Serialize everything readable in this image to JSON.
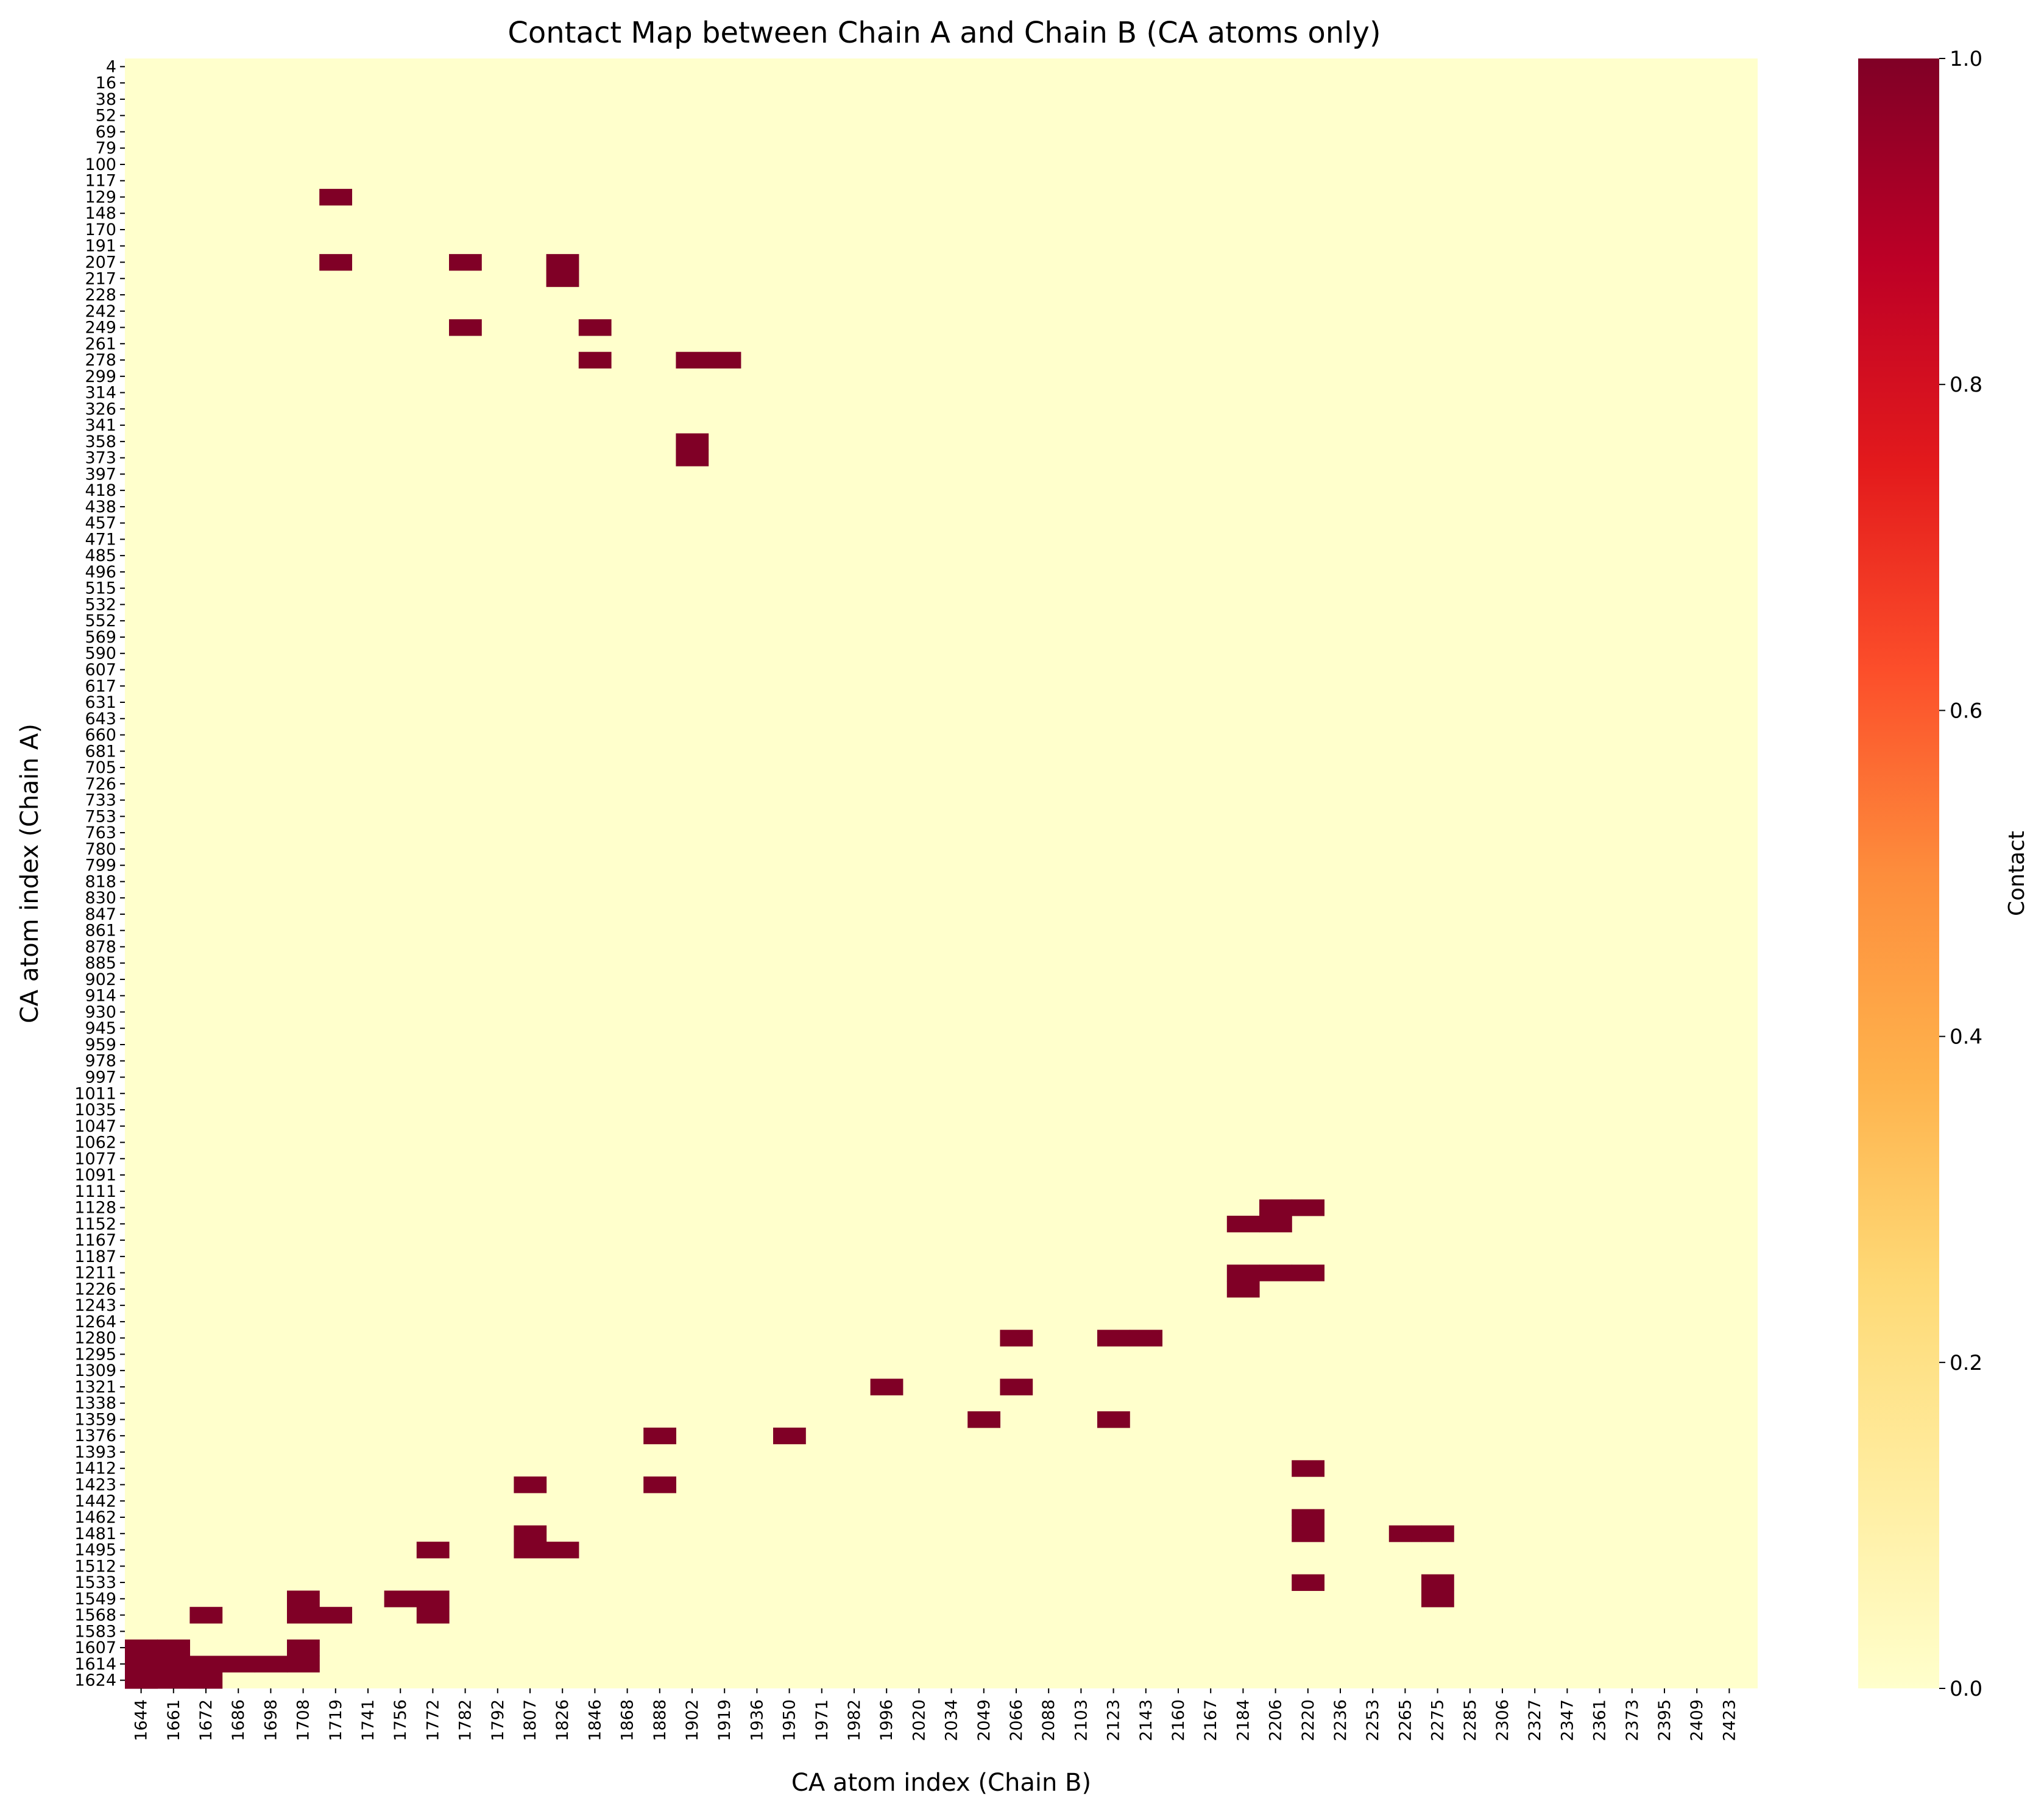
{
  "chart_data": {
    "type": "heatmap",
    "title": "Contact Map between Chain A and Chain B (CA atoms only)",
    "xlabel": "CA atom index (Chain B)",
    "ylabel": "CA atom index (Chain A)",
    "colorbar": {
      "label": "Contact",
      "range": [
        0,
        1
      ],
      "ticks": [
        "0.0",
        "0.2",
        "0.4",
        "0.6",
        "0.8",
        "1.0"
      ],
      "colormap": "YlOrRd",
      "colors": [
        "#ffffcc",
        "#ffeda0",
        "#fed976",
        "#feb24c",
        "#fd8d3c",
        "#fc4e2a",
        "#e31a1c",
        "#bd0026",
        "#800026"
      ]
    },
    "x_tick_labels": [
      "1644",
      "1661",
      "1672",
      "1686",
      "1698",
      "1708",
      "1719",
      "1741",
      "1756",
      "1772",
      "1782",
      "1792",
      "1807",
      "1826",
      "1846",
      "1868",
      "1888",
      "1902",
      "1919",
      "1936",
      "1950",
      "1971",
      "1982",
      "1996",
      "2020",
      "2034",
      "2049",
      "2066",
      "2088",
      "2103",
      "2123",
      "2143",
      "2160",
      "2167",
      "2184",
      "2206",
      "2220",
      "2236",
      "2253",
      "2265",
      "2275",
      "2285",
      "2306",
      "2327",
      "2347",
      "2361",
      "2373",
      "2395",
      "2409",
      "2423"
    ],
    "y_tick_labels": [
      "4",
      "16",
      "38",
      "52",
      "69",
      "79",
      "100",
      "117",
      "129",
      "148",
      "170",
      "191",
      "207",
      "217",
      "228",
      "242",
      "249",
      "261",
      "278",
      "299",
      "314",
      "326",
      "341",
      "358",
      "373",
      "397",
      "418",
      "438",
      "457",
      "471",
      "485",
      "496",
      "515",
      "532",
      "552",
      "569",
      "590",
      "607",
      "617",
      "631",
      "643",
      "660",
      "681",
      "705",
      "726",
      "733",
      "753",
      "763",
      "780",
      "799",
      "818",
      "830",
      "847",
      "861",
      "878",
      "885",
      "902",
      "914",
      "930",
      "945",
      "959",
      "978",
      "997",
      "1011",
      "1035",
      "1047",
      "1062",
      "1077",
      "1091",
      "1111",
      "1128",
      "1152",
      "1167",
      "1187",
      "1211",
      "1226",
      "1243",
      "1264",
      "1280",
      "1295",
      "1309",
      "1321",
      "1338",
      "1359",
      "1376",
      "1393",
      "1412",
      "1423",
      "1442",
      "1462",
      "1481",
      "1495",
      "1512",
      "1533",
      "1549",
      "1568",
      "1583",
      "1607",
      "1614",
      "1624"
    ],
    "contacts": [
      [
        "1719",
        "129"
      ],
      [
        "1719",
        "207"
      ],
      [
        "1782",
        "207"
      ],
      [
        "1826",
        "207"
      ],
      [
        "1826",
        "217"
      ],
      [
        "1782",
        "249"
      ],
      [
        "1846",
        "249"
      ],
      [
        "1846",
        "278"
      ],
      [
        "1902",
        "278"
      ],
      [
        "1919",
        "278"
      ],
      [
        "1902",
        "358"
      ],
      [
        "1902",
        "373"
      ],
      [
        "2206",
        "1128"
      ],
      [
        "2220",
        "1128"
      ],
      [
        "2184",
        "1152"
      ],
      [
        "2206",
        "1152"
      ],
      [
        "2184",
        "1211"
      ],
      [
        "2206",
        "1211"
      ],
      [
        "2220",
        "1211"
      ],
      [
        "2184",
        "1226"
      ],
      [
        "2066",
        "1280"
      ],
      [
        "2123",
        "1280"
      ],
      [
        "2143",
        "1280"
      ],
      [
        "1996",
        "1321"
      ],
      [
        "2066",
        "1321"
      ],
      [
        "2049",
        "1359"
      ],
      [
        "2123",
        "1359"
      ],
      [
        "1888",
        "1376"
      ],
      [
        "1950",
        "1376"
      ],
      [
        "2220",
        "1412"
      ],
      [
        "1807",
        "1423"
      ],
      [
        "1888",
        "1423"
      ],
      [
        "2220",
        "1462"
      ],
      [
        "2220",
        "1481"
      ],
      [
        "2265",
        "1481"
      ],
      [
        "2275",
        "1481"
      ],
      [
        "1807",
        "1481"
      ],
      [
        "1807",
        "1495"
      ],
      [
        "1826",
        "1495"
      ],
      [
        "1772",
        "1495"
      ],
      [
        "2220",
        "1533"
      ],
      [
        "2275",
        "1533"
      ],
      [
        "2275",
        "1549"
      ],
      [
        "1708",
        "1549"
      ],
      [
        "1756",
        "1549"
      ],
      [
        "1772",
        "1549"
      ],
      [
        "1672",
        "1568"
      ],
      [
        "1708",
        "1568"
      ],
      [
        "1719",
        "1568"
      ],
      [
        "1772",
        "1568"
      ],
      [
        "1644",
        "1607"
      ],
      [
        "1661",
        "1607"
      ],
      [
        "1708",
        "1607"
      ],
      [
        "1644",
        "1614"
      ],
      [
        "1661",
        "1614"
      ],
      [
        "1672",
        "1614"
      ],
      [
        "1686",
        "1614"
      ],
      [
        "1698",
        "1614"
      ],
      [
        "1708",
        "1614"
      ],
      [
        "1644",
        "1624"
      ],
      [
        "1661",
        "1624"
      ],
      [
        "1672",
        "1624"
      ],
      [
        "1644",
        "1624+"
      ]
    ],
    "value_range": [
      0,
      1
    ],
    "grid": false,
    "legend": "colorbar right"
  }
}
